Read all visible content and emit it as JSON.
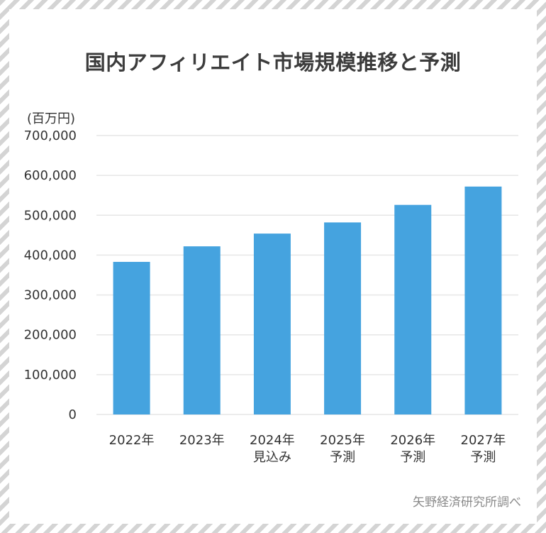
{
  "title": "国内アフィリエイト市場規模推移と予測",
  "unit_label": "(百万円)",
  "source": "矢野経済研究所調べ",
  "chart_data": {
    "type": "bar",
    "title": "国内アフィリエイト市場規模推移と予測",
    "ylabel": "(百万円)",
    "xlabel": "",
    "ylim": [
      0,
      700000
    ],
    "y_ticks": [
      "0",
      "100,000",
      "200,000",
      "300,000",
      "400,000",
      "500,000",
      "600,000",
      "700,000"
    ],
    "categories": [
      [
        "2022年"
      ],
      [
        "2023年"
      ],
      [
        "2024年",
        "見込み"
      ],
      [
        "2025年",
        "予測"
      ],
      [
        "2026年",
        "予測"
      ],
      [
        "2027年",
        "予測"
      ]
    ],
    "values": [
      383000,
      422000,
      454000,
      482000,
      526000,
      572000
    ],
    "bar_color": "#45a3df",
    "grid": true
  }
}
